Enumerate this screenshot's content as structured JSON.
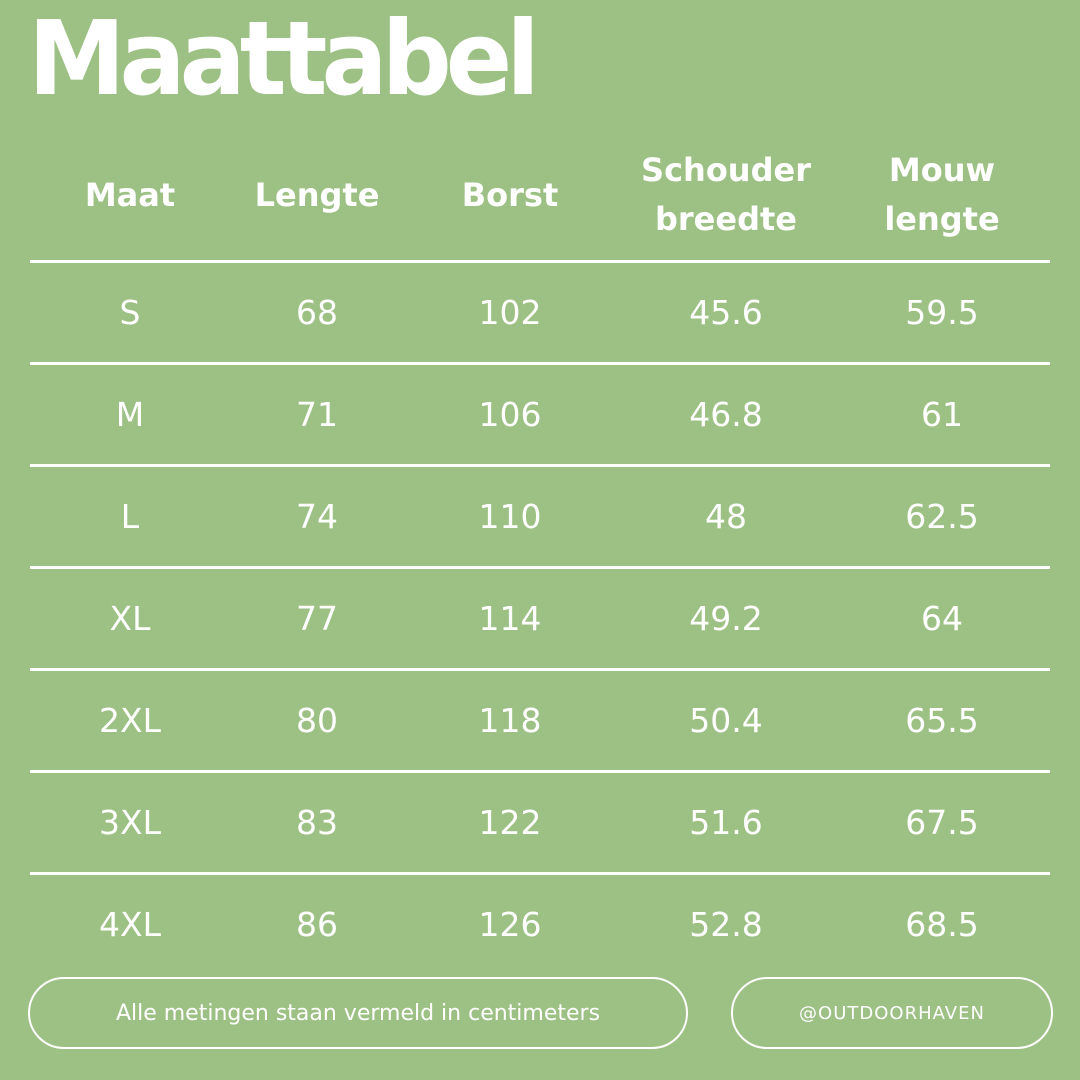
{
  "title": "Maattabel",
  "table": {
    "headers": [
      {
        "line1": "Maat",
        "line2": ""
      },
      {
        "line1": "Lengte",
        "line2": ""
      },
      {
        "line1": "Borst",
        "line2": ""
      },
      {
        "line1": "Schouder",
        "line2": "breedte"
      },
      {
        "line1": "Mouw",
        "line2": "lengte"
      }
    ],
    "rows": [
      [
        "S",
        "68",
        "102",
        "45.6",
        "59.5"
      ],
      [
        "M",
        "71",
        "106",
        "46.8",
        "61"
      ],
      [
        "L",
        "74",
        "110",
        "48",
        "62.5"
      ],
      [
        "XL",
        "77",
        "114",
        "49.2",
        "64"
      ],
      [
        "2XL",
        "80",
        "118",
        "50.4",
        "65.5"
      ],
      [
        "3XL",
        "83",
        "122",
        "51.6",
        "67.5"
      ],
      [
        "4XL",
        "86",
        "126",
        "52.8",
        "68.5"
      ]
    ]
  },
  "footer": {
    "note": "Alle metingen staan vermeld in centimeters",
    "handle": "@OUTDOORHAVEN"
  },
  "colors": {
    "background": "#9dc184",
    "foreground": "#ffffff"
  }
}
